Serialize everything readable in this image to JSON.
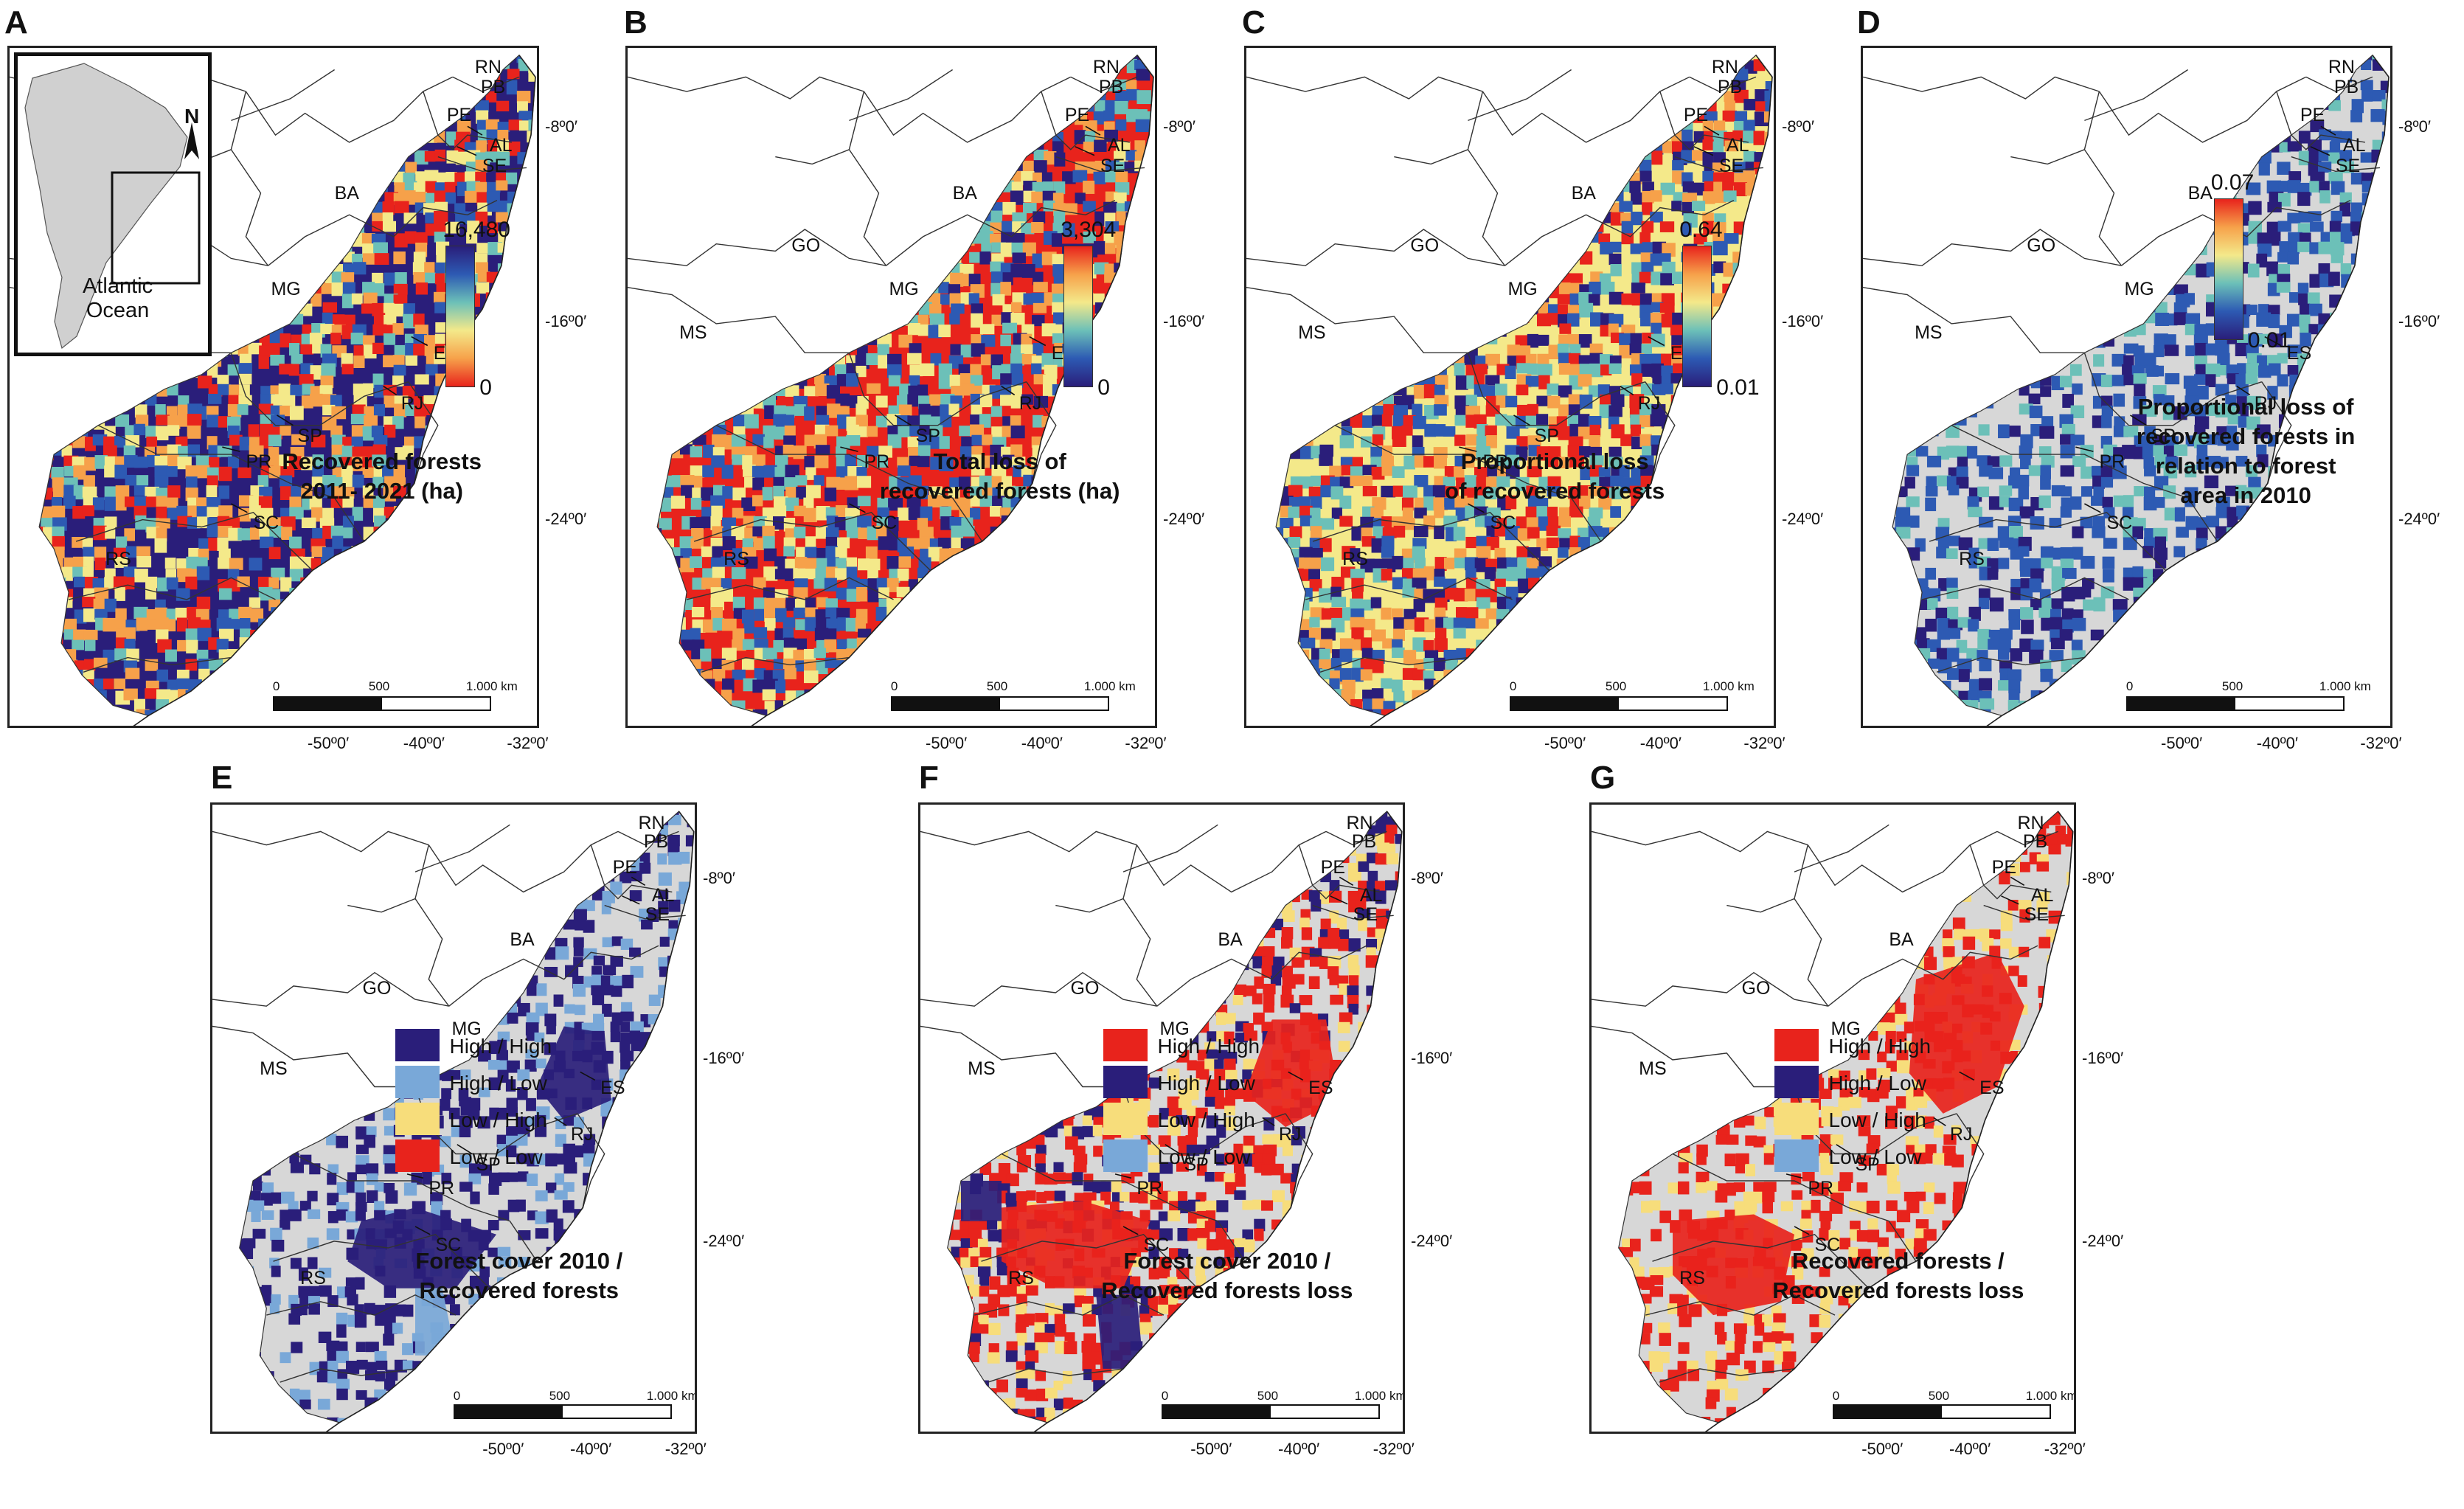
{
  "figure": {
    "panels": [
      {
        "letter": "A",
        "title_lines": [
          "Recovered forests",
          "2011- 2021 (ha)"
        ],
        "colorbar": {
          "max": "16,480",
          "min": "0"
        },
        "lat_labels": [
          "-8º0′",
          "-16º0′",
          "-24º0′"
        ],
        "lon_labels": [
          "-50º0′",
          "-40º0′",
          "-32º0′"
        ]
      },
      {
        "letter": "B",
        "title_lines": [
          "Total loss of",
          "recovered forests (ha)"
        ],
        "colorbar": {
          "max": "3,304",
          "min": "0"
        },
        "lat_labels": [
          "-8º0′",
          "-16º0′",
          "-24º0′"
        ],
        "lon_labels": [
          "-50º0′",
          "-40º0′",
          "-32º0′"
        ]
      },
      {
        "letter": "C",
        "title_lines": [
          "Proportional loss",
          "of recovered forests"
        ],
        "colorbar": {
          "max": "0.64",
          "min": "0.01"
        },
        "lat_labels": [
          "-8º0′",
          "-16º0′",
          "-24º0′"
        ],
        "lon_labels": [
          "-50º0′",
          "-40º0′",
          "-32º0′"
        ]
      },
      {
        "letter": "D",
        "title_lines": [
          "Proportional loss of",
          "recovered forests in",
          "relation to forest",
          "area in 2010"
        ],
        "colorbar": {
          "max": "0.07",
          "min": "0.01"
        },
        "lat_labels": [
          "-8º0′",
          "-16º0′",
          "-24º0′"
        ],
        "lon_labels": [
          "-50º0′",
          "-40º0′",
          "-32º0′"
        ]
      },
      {
        "letter": "E",
        "title_lines": [
          "Forest cover 2010 /",
          "Recovered forests"
        ],
        "legend": [
          "High / High",
          "High / Low",
          "Low / High",
          "Low / Low"
        ],
        "lat_labels": [
          "-8º0′",
          "-16º0′",
          "-24º0′"
        ],
        "lon_labels": [
          "-50º0′",
          "-40º0′",
          "-32º0′"
        ]
      },
      {
        "letter": "F",
        "title_lines": [
          "Forest cover 2010 /",
          "Recovered forests loss"
        ],
        "legend": [
          "High / High",
          "High / Low",
          "Low / High",
          "Low / Low"
        ],
        "lat_labels": [
          "-8º0′",
          "-16º0′",
          "-24º0′"
        ],
        "lon_labels": [
          "-50º0′",
          "-40º0′",
          "-32º0′"
        ]
      },
      {
        "letter": "G",
        "title_lines": [
          "Recovered forests /",
          "Recovered forests loss"
        ],
        "legend": [
          "High / High",
          "High / Low",
          "Low / High",
          "Low / Low"
        ],
        "lat_labels": [
          "-8º0′",
          "-16º0′",
          "-24º0′"
        ],
        "lon_labels": [
          "-50º0′",
          "-40º0′",
          "-32º0′"
        ]
      }
    ],
    "states": [
      "RN",
      "PB",
      "PE",
      "AL",
      "SE",
      "BA",
      "GO",
      "MG",
      "MS",
      "ES",
      "RJ",
      "SP",
      "PR",
      "SC",
      "RS"
    ],
    "scale_bar": {
      "start": "0",
      "mid": "500",
      "end": "1.000 km"
    },
    "inset": {
      "north": "N",
      "ocean_lines": [
        "Atlantic",
        "Ocean"
      ]
    },
    "colors": {
      "red": "#e8231c",
      "orange": "#f6a14a",
      "yellow": "#f4e98a",
      "teal": "#6cc0b8",
      "blue": "#2d5ab3",
      "navy": "#2a1e7a",
      "grey": "#d7d7d7",
      "light_blue": "#79a8d8",
      "pale_yellow": "#f7dd7b"
    }
  }
}
